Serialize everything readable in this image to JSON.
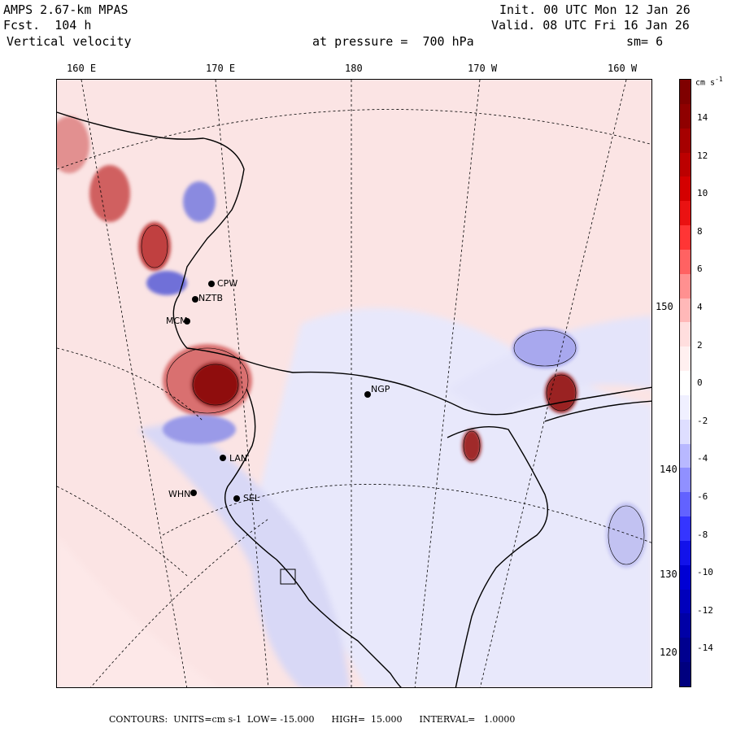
{
  "header": {
    "model": "AMPS 2.67-km MPAS",
    "forecast": "Fcst.  104 h",
    "field": "Vertical velocity",
    "init": "Init. 00 UTC Mon 12 Jan 26",
    "valid": "Valid. 08 UTC Fri 16 Jan 26",
    "level": "at pressure =  700 hPa",
    "smooth": "sm= 6"
  },
  "longitude_labels": [
    "160 E",
    "170 E",
    "180",
    "170 W",
    "160 W"
  ],
  "latitude_labels": [
    "150 W",
    "140 W",
    "130 W",
    "120 W"
  ],
  "stations": [
    "CPW",
    "NZTB",
    "MCM",
    "NGP",
    "LAN",
    "WHN",
    "SEL"
  ],
  "colorbar": {
    "unit": "cm s",
    "unit_exp": "-1",
    "ticks": [
      "14",
      "12",
      "10",
      "8",
      "6",
      "4",
      "2",
      "0",
      "-2",
      "-4",
      "-6",
      "-8",
      "-10",
      "-12",
      "-14"
    ],
    "colors": [
      "#7f0000",
      "#8f0000",
      "#a60000",
      "#bc0000",
      "#d40000",
      "#ea1212",
      "#ff3535",
      "#ff6262",
      "#ff9090",
      "#ffb8b8",
      "#ffdede",
      "#fff0f0",
      "#ffffff",
      "#f0f0ff",
      "#dedeff",
      "#b8b8ff",
      "#9090ff",
      "#6262ff",
      "#3535ff",
      "#1212ea",
      "#0000d4",
      "#0000bc",
      "#0000a6",
      "#00008f",
      "#00007f"
    ]
  },
  "footer": "CONTOURS:  UNITS=cm s-1  LOW= -15.000      HIGH=  15.000      INTERVAL=   1.0000"
}
